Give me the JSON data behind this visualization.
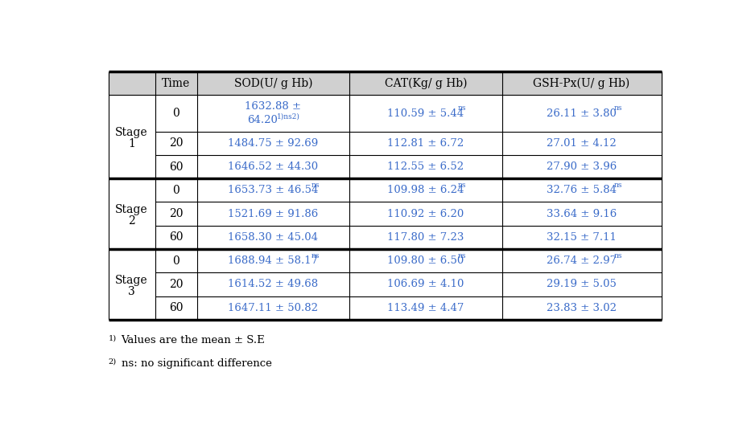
{
  "headers": [
    "",
    "Time",
    "SOD(U/ g Hb)",
    "CAT(Kg/ g Hb)",
    "GSH-Px(U/ g Hb)"
  ],
  "stages": [
    {
      "label": "Stage\n1",
      "rows": [
        {
          "time": "0",
          "sod": "1632.88 ±",
          "sod2": "64.20",
          "sod_sup": "1)ns2)",
          "sod_twoline": true,
          "cat": "110.59 ± 5.44",
          "cat_sup": "ns",
          "gsh": "26.11 ± 3.80",
          "gsh_sup": "ns"
        },
        {
          "time": "20",
          "sod": "1484.75 ± 92.69",
          "sod_twoline": false,
          "cat": "112.81 ± 6.72",
          "cat_sup": "",
          "gsh": "27.01 ± 4.12",
          "gsh_sup": ""
        },
        {
          "time": "60",
          "sod": "1646.52 ± 44.30",
          "sod_twoline": false,
          "cat": "112.55 ± 6.52",
          "cat_sup": "",
          "gsh": "27.90 ± 3.96",
          "gsh_sup": ""
        }
      ]
    },
    {
      "label": "Stage\n2",
      "rows": [
        {
          "time": "0",
          "sod": "1653.73 ± 46.54",
          "sod_sup": "ns",
          "sod_twoline": false,
          "cat": "109.98 ± 6.24",
          "cat_sup": "ns",
          "gsh": "32.76 ± 5.84",
          "gsh_sup": "ns"
        },
        {
          "time": "20",
          "sod": "1521.69 ± 91.86",
          "sod_twoline": false,
          "cat": "110.92 ± 6.20",
          "cat_sup": "",
          "gsh": "33.64 ± 9.16",
          "gsh_sup": ""
        },
        {
          "time": "60",
          "sod": "1658.30 ± 45.04",
          "sod_twoline": false,
          "cat": "117.80 ± 7.23",
          "cat_sup": "",
          "gsh": "32.15 ± 7.11",
          "gsh_sup": ""
        }
      ]
    },
    {
      "label": "Stage\n3",
      "rows": [
        {
          "time": "0",
          "sod": "1688.94 ± 58.17",
          "sod_sup": "ns",
          "sod_twoline": false,
          "cat": "109.80 ± 6.50",
          "cat_sup": "ns",
          "gsh": "26.74 ± 2.97",
          "gsh_sup": "ns"
        },
        {
          "time": "20",
          "sod": "1614.52 ± 49.68",
          "sod_twoline": false,
          "cat": "106.69 ± 4.10",
          "cat_sup": "",
          "gsh": "29.19 ± 5.05",
          "gsh_sup": ""
        },
        {
          "time": "60",
          "sod": "1647.11 ± 50.82",
          "sod_twoline": false,
          "cat": "113.49 ± 4.47",
          "cat_sup": "",
          "gsh": "23.83 ± 3.02",
          "gsh_sup": ""
        }
      ]
    }
  ],
  "footnote1": "1)Values are the mean ± S.E",
  "footnote1_sup": "1)",
  "footnote1_main": "Values are the mean ± S.E",
  "footnote2_sup": "2)",
  "footnote2_main": "ns: no significant difference",
  "text_color": "#3a6bc9",
  "header_bg": "#d0d0d0",
  "border_color": "#000000",
  "bg_color": "#ffffff",
  "thick_lw": 2.5,
  "thin_lw": 0.8
}
